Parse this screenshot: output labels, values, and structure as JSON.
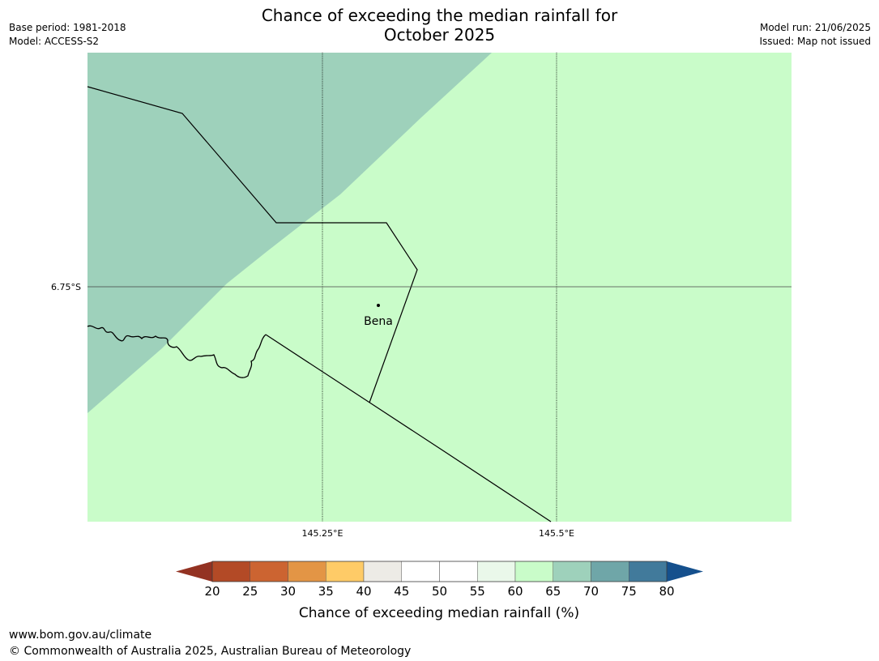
{
  "header": {
    "title_line1": "Chance of exceeding the median rainfall for",
    "title_line2": "October 2025",
    "base_period": "Base period: 1981-2018",
    "model": "Model: ACCESS-S2",
    "model_run": "Model run: 21/06/2025",
    "issued": "Issued: Map not issued"
  },
  "map": {
    "lat_ticks": [
      "6.75°S"
    ],
    "lon_ticks": [
      "145.25°E",
      "145.5°E"
    ],
    "place_label": "Bena",
    "colors": {
      "band_60_65": "#c9fcc9",
      "band_65_70": "#9ed1bb",
      "border": "#000000"
    }
  },
  "colorbar": {
    "title": "Chance of exceeding median rainfall (%)",
    "ticks": [
      "20",
      "25",
      "30",
      "35",
      "40",
      "45",
      "50",
      "55",
      "60",
      "65",
      "70",
      "75",
      "80"
    ],
    "under_color": "#933222",
    "over_color": "#15508d",
    "colors": [
      "#b34a26",
      "#cc6431",
      "#e39545",
      "#fecb67",
      "#edebe6",
      "#ffffff",
      "#ffffff",
      "#eaf8ea",
      "#c9fcc9",
      "#9ed1bb",
      "#6fa6a8",
      "#417a9b"
    ]
  },
  "footer": {
    "url": "www.bom.gov.au/climate",
    "copyright": "© Commonwealth of Australia 2025, Australian Bureau of Meteorology"
  }
}
